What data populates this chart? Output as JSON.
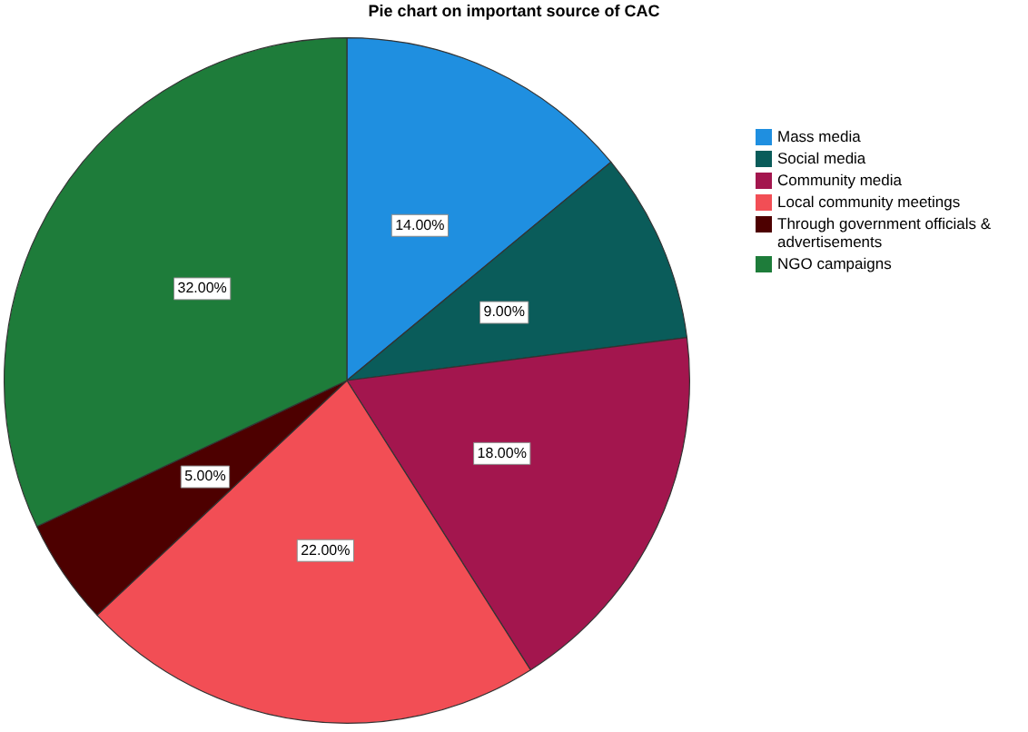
{
  "chart_data": {
    "type": "pie",
    "title": "Pie chart on important source of CAC",
    "categories": [
      "Mass media",
      "Social media",
      "Community media",
      "Local community meetings",
      "Through government officials & advertisements",
      "NGO campaigns"
    ],
    "values": [
      14,
      9,
      18,
      22,
      5,
      32
    ],
    "value_labels": [
      "14.00%",
      "9.00%",
      "18.00%",
      "22.00%",
      "5.00%",
      "32.00%"
    ],
    "colors": [
      "#1f8fe0",
      "#0a5c5a",
      "#a3164e",
      "#f24e55",
      "#4d0000",
      "#1e7c3a"
    ],
    "legend": "right"
  }
}
